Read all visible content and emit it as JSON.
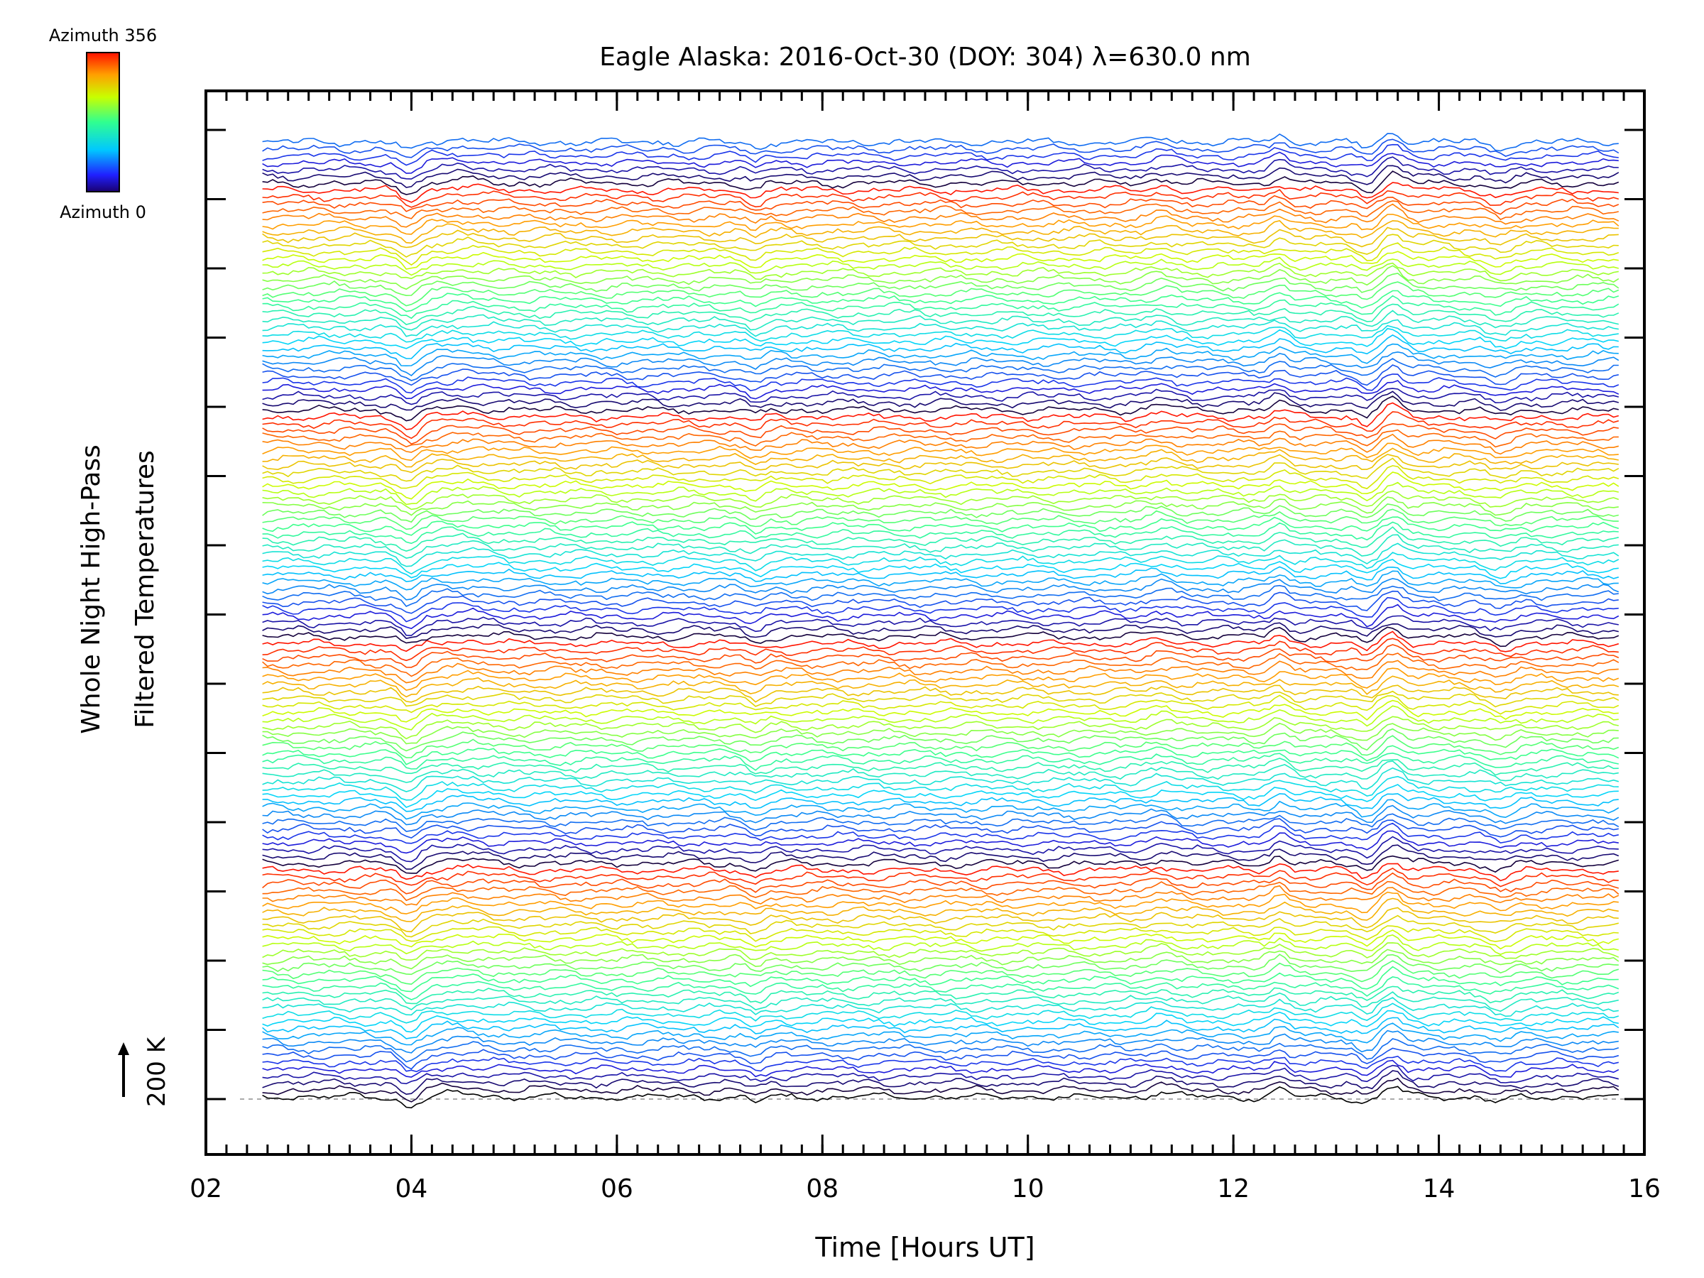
{
  "chart_data": {
    "type": "line",
    "title": "Eagle Alaska: 2016-Oct-30 (DOY: 304) λ=630.0 nm",
    "xlabel": "Time [Hours UT]",
    "ylabel_line1": "Whole Night High-Pass",
    "ylabel_line2": "Filtered Temperatures",
    "scale_label": "200 K",
    "xlim": [
      2,
      16
    ],
    "x_ticks": [
      2,
      4,
      6,
      8,
      10,
      12,
      14,
      16
    ],
    "x_tick_labels": [
      "02",
      "04",
      "06",
      "08",
      "10",
      "12",
      "14",
      "16"
    ],
    "time_range": [
      2.55,
      15.75
    ],
    "trace_count": 140,
    "colorbar": {
      "top_label": "Azimuth 356",
      "bottom_label": "Azimuth 0",
      "colormap": "rainbow"
    },
    "grid": false,
    "legend": "colorbar top-left"
  }
}
